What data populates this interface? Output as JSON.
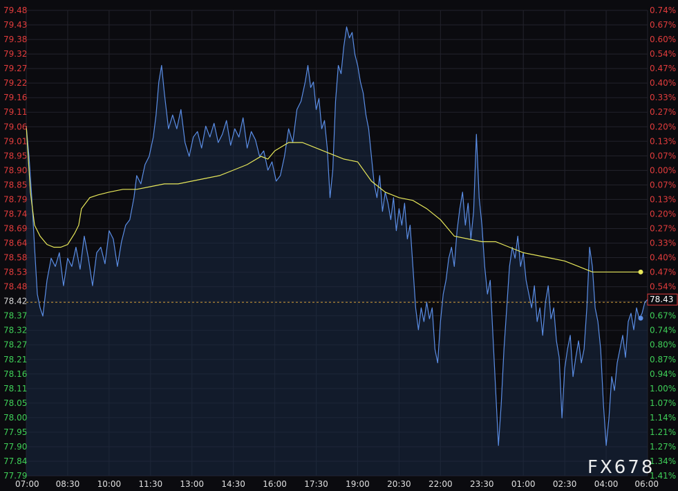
{
  "watermark": "FX678",
  "last_price_label": "78.43",
  "colors": {
    "background": "#0b0b0f",
    "grid": "#23232c",
    "price_line": "#5b8ee6",
    "area_fill": "#1a2a44",
    "avg_line": "#e8e85a",
    "ref_line": "#d9a23a",
    "tick_up": "#e23c3c",
    "tick_down": "#3fcf58",
    "tick_neutral": "#d8d8d8",
    "time_tick": "#e0e0e0",
    "last_price_box": "#e23c3c"
  },
  "chart_data": {
    "type": "line",
    "reference_price": 78.42,
    "ylim": [
      77.79,
      79.48
    ],
    "price_ticks": [
      "79.48",
      "79.43",
      "79.38",
      "79.32",
      "79.27",
      "79.22",
      "79.16",
      "79.11",
      "79.06",
      "79.01",
      "78.95",
      "78.90",
      "78.85",
      "78.79",
      "78.74",
      "78.69",
      "78.64",
      "78.58",
      "78.53",
      "78.48",
      "78.42",
      "78.37",
      "78.32",
      "78.27",
      "78.21",
      "78.16",
      "78.11",
      "78.05",
      "78.00",
      "77.95",
      "77.90",
      "77.84",
      "77.79"
    ],
    "percent_ticks": [
      "0.74%",
      "0.67%",
      "0.60%",
      "0.54%",
      "0.47%",
      "0.40%",
      "0.33%",
      "0.27%",
      "0.20%",
      "0.13%",
      "0.07%",
      "0.00%",
      "0.07%",
      "0.13%",
      "0.20%",
      "0.27%",
      "0.33%",
      "0.40%",
      "0.47%",
      "0.54%",
      "0.60%",
      "0.67%",
      "0.74%",
      "0.80%",
      "0.87%",
      "0.94%",
      "1.00%",
      "1.07%",
      "1.14%",
      "1.21%",
      "1.27%",
      "1.34%",
      "1.41%"
    ],
    "time_ticks": [
      "07:00",
      "08:30",
      "10:00",
      "11:30",
      "13:00",
      "14:30",
      "16:00",
      "17:30",
      "19:00",
      "20:30",
      "22:00",
      "23:30",
      "01:00",
      "02:30",
      "04:00",
      "06:00"
    ],
    "last_price": 78.43,
    "series": [
      {
        "values": [
          [
            0,
            79.06
          ],
          [
            2,
            78.95
          ],
          [
            4,
            78.8
          ],
          [
            6,
            78.62
          ],
          [
            8,
            78.45
          ],
          [
            10,
            78.4
          ],
          [
            12,
            78.37
          ],
          [
            15,
            78.5
          ],
          [
            18,
            78.58
          ],
          [
            21,
            78.55
          ],
          [
            24,
            78.6
          ],
          [
            27,
            78.48
          ],
          [
            30,
            78.58
          ],
          [
            33,
            78.55
          ],
          [
            36,
            78.62
          ],
          [
            39,
            78.54
          ],
          [
            42,
            78.66
          ],
          [
            45,
            78.58
          ],
          [
            48,
            78.48
          ],
          [
            51,
            78.6
          ],
          [
            54,
            78.62
          ],
          [
            57,
            78.56
          ],
          [
            60,
            78.68
          ],
          [
            63,
            78.65
          ],
          [
            66,
            78.55
          ],
          [
            69,
            78.64
          ],
          [
            72,
            78.7
          ],
          [
            75,
            78.72
          ],
          [
            78,
            78.8
          ],
          [
            80,
            78.88
          ],
          [
            83,
            78.85
          ],
          [
            86,
            78.92
          ],
          [
            89,
            78.95
          ],
          [
            92,
            79.02
          ],
          [
            94,
            79.1
          ],
          [
            96,
            79.22
          ],
          [
            98,
            79.28
          ],
          [
            100,
            79.18
          ],
          [
            103,
            79.05
          ],
          [
            106,
            79.1
          ],
          [
            109,
            79.05
          ],
          [
            112,
            79.12
          ],
          [
            115,
            79.0
          ],
          [
            118,
            78.95
          ],
          [
            121,
            79.02
          ],
          [
            124,
            79.04
          ],
          [
            127,
            78.98
          ],
          [
            130,
            79.06
          ],
          [
            133,
            79.02
          ],
          [
            136,
            79.07
          ],
          [
            139,
            79.0
          ],
          [
            142,
            79.03
          ],
          [
            145,
            79.08
          ],
          [
            148,
            78.99
          ],
          [
            151,
            79.05
          ],
          [
            154,
            79.02
          ],
          [
            157,
            79.09
          ],
          [
            160,
            78.98
          ],
          [
            163,
            79.04
          ],
          [
            166,
            79.01
          ],
          [
            169,
            78.95
          ],
          [
            172,
            78.97
          ],
          [
            175,
            78.9
          ],
          [
            178,
            78.93
          ],
          [
            181,
            78.86
          ],
          [
            184,
            78.88
          ],
          [
            187,
            78.95
          ],
          [
            190,
            79.05
          ],
          [
            193,
            79.0
          ],
          [
            196,
            79.12
          ],
          [
            199,
            79.15
          ],
          [
            202,
            79.22
          ],
          [
            204,
            79.28
          ],
          [
            206,
            79.2
          ],
          [
            208,
            79.22
          ],
          [
            210,
            79.12
          ],
          [
            212,
            79.16
          ],
          [
            214,
            79.05
          ],
          [
            216,
            79.08
          ],
          [
            218,
            78.98
          ],
          [
            220,
            78.8
          ],
          [
            222,
            78.9
          ],
          [
            224,
            79.15
          ],
          [
            226,
            79.28
          ],
          [
            228,
            79.25
          ],
          [
            230,
            79.35
          ],
          [
            232,
            79.42
          ],
          [
            234,
            79.38
          ],
          [
            236,
            79.4
          ],
          [
            238,
            79.32
          ],
          [
            240,
            79.28
          ],
          [
            242,
            79.22
          ],
          [
            244,
            79.18
          ],
          [
            246,
            79.1
          ],
          [
            248,
            79.05
          ],
          [
            250,
            78.95
          ],
          [
            252,
            78.85
          ],
          [
            254,
            78.8
          ],
          [
            256,
            78.88
          ],
          [
            258,
            78.75
          ],
          [
            260,
            78.82
          ],
          [
            262,
            78.78
          ],
          [
            264,
            78.72
          ],
          [
            266,
            78.8
          ],
          [
            268,
            78.68
          ],
          [
            270,
            78.76
          ],
          [
            272,
            78.7
          ],
          [
            274,
            78.78
          ],
          [
            276,
            78.65
          ],
          [
            278,
            78.7
          ],
          [
            280,
            78.55
          ],
          [
            282,
            78.4
          ],
          [
            284,
            78.32
          ],
          [
            286,
            78.4
          ],
          [
            288,
            78.35
          ],
          [
            290,
            78.42
          ],
          [
            292,
            78.36
          ],
          [
            294,
            78.4
          ],
          [
            296,
            78.25
          ],
          [
            298,
            78.2
          ],
          [
            300,
            78.35
          ],
          [
            302,
            78.45
          ],
          [
            304,
            78.5
          ],
          [
            306,
            78.58
          ],
          [
            308,
            78.62
          ],
          [
            310,
            78.55
          ],
          [
            312,
            78.68
          ],
          [
            314,
            78.76
          ],
          [
            316,
            78.82
          ],
          [
            318,
            78.7
          ],
          [
            320,
            78.78
          ],
          [
            322,
            78.65
          ],
          [
            324,
            78.75
          ],
          [
            326,
            79.03
          ],
          [
            328,
            78.8
          ],
          [
            330,
            78.7
          ],
          [
            332,
            78.55
          ],
          [
            334,
            78.45
          ],
          [
            336,
            78.5
          ],
          [
            338,
            78.3
          ],
          [
            340,
            78.1
          ],
          [
            342,
            77.9
          ],
          [
            344,
            78.05
          ],
          [
            346,
            78.25
          ],
          [
            348,
            78.4
          ],
          [
            350,
            78.55
          ],
          [
            352,
            78.62
          ],
          [
            354,
            78.58
          ],
          [
            356,
            78.66
          ],
          [
            358,
            78.55
          ],
          [
            360,
            78.6
          ],
          [
            362,
            78.5
          ],
          [
            364,
            78.45
          ],
          [
            366,
            78.4
          ],
          [
            368,
            78.48
          ],
          [
            370,
            78.35
          ],
          [
            372,
            78.4
          ],
          [
            374,
            78.3
          ],
          [
            376,
            78.42
          ],
          [
            378,
            78.48
          ],
          [
            380,
            78.36
          ],
          [
            382,
            78.4
          ],
          [
            384,
            78.28
          ],
          [
            386,
            78.22
          ],
          [
            388,
            78.0
          ],
          [
            390,
            78.18
          ],
          [
            392,
            78.25
          ],
          [
            394,
            78.3
          ],
          [
            396,
            78.15
          ],
          [
            398,
            78.22
          ],
          [
            400,
            78.28
          ],
          [
            402,
            78.2
          ],
          [
            404,
            78.25
          ],
          [
            406,
            78.4
          ],
          [
            408,
            78.62
          ],
          [
            410,
            78.55
          ],
          [
            412,
            78.4
          ],
          [
            414,
            78.35
          ],
          [
            416,
            78.25
          ],
          [
            418,
            78.05
          ],
          [
            420,
            77.9
          ],
          [
            422,
            78.0
          ],
          [
            424,
            78.15
          ],
          [
            426,
            78.1
          ],
          [
            428,
            78.2
          ],
          [
            430,
            78.25
          ],
          [
            432,
            78.3
          ],
          [
            434,
            78.22
          ],
          [
            436,
            78.35
          ],
          [
            438,
            78.38
          ],
          [
            440,
            78.32
          ],
          [
            442,
            78.4
          ],
          [
            444,
            78.36
          ],
          [
            446,
            78.38
          ],
          [
            448,
            78.42
          ],
          [
            450,
            78.43
          ]
        ]
      },
      {
        "values": [
          [
            0,
            79.06
          ],
          [
            3,
            78.82
          ],
          [
            6,
            78.7
          ],
          [
            10,
            78.66
          ],
          [
            15,
            78.63
          ],
          [
            20,
            78.62
          ],
          [
            25,
            78.62
          ],
          [
            30,
            78.63
          ],
          [
            35,
            78.67
          ],
          [
            38,
            78.7
          ],
          [
            40,
            78.76
          ],
          [
            43,
            78.78
          ],
          [
            46,
            78.8
          ],
          [
            52,
            78.81
          ],
          [
            60,
            78.82
          ],
          [
            70,
            78.83
          ],
          [
            80,
            78.83
          ],
          [
            90,
            78.84
          ],
          [
            100,
            78.85
          ],
          [
            110,
            78.85
          ],
          [
            120,
            78.86
          ],
          [
            130,
            78.87
          ],
          [
            140,
            78.88
          ],
          [
            150,
            78.9
          ],
          [
            160,
            78.92
          ],
          [
            170,
            78.95
          ],
          [
            175,
            78.94
          ],
          [
            180,
            78.97
          ],
          [
            190,
            79.0
          ],
          [
            200,
            79.0
          ],
          [
            210,
            78.98
          ],
          [
            220,
            78.96
          ],
          [
            230,
            78.94
          ],
          [
            240,
            78.93
          ],
          [
            250,
            78.86
          ],
          [
            260,
            78.82
          ],
          [
            270,
            78.8
          ],
          [
            280,
            78.79
          ],
          [
            290,
            78.76
          ],
          [
            300,
            78.72
          ],
          [
            310,
            78.66
          ],
          [
            320,
            78.65
          ],
          [
            330,
            78.64
          ],
          [
            340,
            78.64
          ],
          [
            350,
            78.62
          ],
          [
            360,
            78.6
          ],
          [
            370,
            78.59
          ],
          [
            380,
            78.58
          ],
          [
            390,
            78.57
          ],
          [
            400,
            78.55
          ],
          [
            405,
            78.54
          ],
          [
            410,
            78.53
          ],
          [
            420,
            78.53
          ],
          [
            430,
            78.53
          ],
          [
            440,
            78.53
          ],
          [
            445,
            78.53
          ]
        ]
      }
    ]
  }
}
